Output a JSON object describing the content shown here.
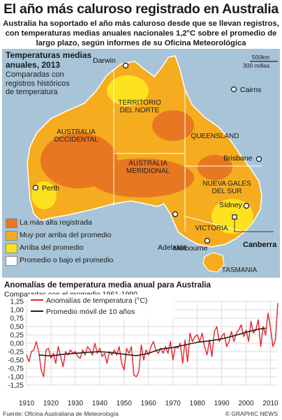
{
  "title": "El año más caluroso registrado en Australia",
  "subtitle": "Australia ha soportado el año más caluroso desde que se llevan registros, con temperaturas medias anuales nacionales 1,2°C sobre el promedio de largo plazo, según informes de su Oficina Meteorológica",
  "map": {
    "heading_line1": "Temperaturas medias",
    "heading_line2": "anuales, 2013",
    "sub_line1": "Comparadas con",
    "sub_line2": "registros históricos",
    "sub_line3": "de temperatura",
    "scale_km": "500km",
    "scale_miles": "300 millas",
    "regions": {
      "wa_1": "AUSTRALIA",
      "wa_2": "OCCIDENTAL",
      "nt_1": "TERRITORIO",
      "nt_2": "DEL NORTE",
      "qld": "QUEENSLAND",
      "sa_1": "AUSTRALIA",
      "sa_2": "MERIDIONAL",
      "nsw_1": "NUEVA GALES",
      "nsw_2": "DEL SUR",
      "vic": "VICTORIA",
      "tas": "TASMANIA"
    },
    "cities": {
      "darwin": "Darwin",
      "cairns": "Cairns",
      "brisbane": "Brisbane",
      "perth": "Perth",
      "adelaide": "Adelaida",
      "sydney": "Sídney",
      "canberra": "Canberra",
      "melbourne": "Melbourne"
    },
    "legend": [
      {
        "label": "La más alta registrada",
        "color": "#e87722"
      },
      {
        "label": "Muy por arriba del promedio",
        "color": "#f5ac1e"
      },
      {
        "label": "Arriba del promedio",
        "color": "#fde21f"
      },
      {
        "label": "Promedio o bajo el promedio",
        "color": "#ffffff"
      }
    ]
  },
  "chart_title": "Anomalías de temperatura media anual para Australia",
  "chart_subtitle": "Comparadas con el promedio 1961-1990",
  "chart_data": {
    "type": "line",
    "title": "Anomalías de temperatura media anual para Australia",
    "subtitle": "Comparadas con el promedio 1961-1990",
    "xlabel": "",
    "ylabel": "",
    "xlim": [
      1910,
      2013
    ],
    "ylim": [
      -1.25,
      1.25
    ],
    "xticks": [
      1910,
      1920,
      1930,
      1940,
      1950,
      1960,
      1970,
      1980,
      1990,
      2000,
      2010
    ],
    "yticks": [
      "1,25",
      "1,00",
      "0,75",
      "0,50",
      "0,25",
      "0,00",
      "-0,25",
      "-0,50",
      "-0,75",
      "-1,00",
      "-1,25"
    ],
    "grid": true,
    "legend_position": "top-left",
    "colors": {
      "anomaly": "#e4232b",
      "moving_average": "#222222"
    },
    "series": [
      {
        "name": "Anomalías de temperatura (°C)",
        "x": [
          1910,
          1911,
          1912,
          1913,
          1914,
          1915,
          1916,
          1917,
          1918,
          1919,
          1920,
          1921,
          1922,
          1923,
          1924,
          1925,
          1926,
          1927,
          1928,
          1929,
          1930,
          1931,
          1932,
          1933,
          1934,
          1935,
          1936,
          1937,
          1938,
          1939,
          1940,
          1941,
          1942,
          1943,
          1944,
          1945,
          1946,
          1947,
          1948,
          1949,
          1950,
          1951,
          1952,
          1953,
          1954,
          1955,
          1956,
          1957,
          1958,
          1959,
          1960,
          1961,
          1962,
          1963,
          1964,
          1965,
          1966,
          1967,
          1968,
          1969,
          1970,
          1971,
          1972,
          1973,
          1974,
          1975,
          1976,
          1977,
          1978,
          1979,
          1980,
          1981,
          1982,
          1983,
          1984,
          1985,
          1986,
          1987,
          1988,
          1989,
          1990,
          1991,
          1992,
          1993,
          1994,
          1995,
          1996,
          1997,
          1998,
          1999,
          2000,
          2001,
          2002,
          2003,
          2004,
          2005,
          2006,
          2007,
          2008,
          2009,
          2010,
          2011,
          2012,
          2013
        ],
        "values": [
          -0.35,
          -0.55,
          -0.25,
          -0.2,
          0.05,
          -0.25,
          -0.8,
          -1.0,
          -0.2,
          -0.15,
          -0.45,
          -0.3,
          -0.6,
          -0.1,
          -0.4,
          -0.7,
          -0.25,
          -0.35,
          -0.2,
          -0.3,
          -0.25,
          -0.4,
          -0.45,
          -0.2,
          -0.35,
          -0.1,
          -0.2,
          -0.35,
          0.0,
          -0.3,
          -0.15,
          -0.4,
          -0.3,
          -0.6,
          -0.25,
          -0.35,
          -0.2,
          -0.35,
          -0.1,
          -0.6,
          -0.8,
          -0.15,
          -0.3,
          -0.1,
          -0.95,
          -1.0,
          -0.85,
          -0.05,
          -0.5,
          -0.2,
          -0.35,
          -0.1,
          0.05,
          -0.2,
          -0.3,
          -0.15,
          -0.3,
          -0.1,
          -0.3,
          0.05,
          -0.5,
          -0.1,
          -0.15,
          0.0,
          -0.6,
          0.1,
          -0.55,
          0.3,
          0.05,
          0.2,
          0.25,
          0.05,
          0.3,
          -0.1,
          -0.35,
          0.1,
          -0.4,
          0.35,
          0.5,
          0.05,
          0.2,
          0.3,
          -0.1,
          0.05,
          0.35,
          0.05,
          0.3,
          0.4,
          0.55,
          0.2,
          0.4,
          0.05,
          0.65,
          0.3,
          0.4,
          0.7,
          -0.1,
          0.5,
          0.25,
          0.9,
          0.45,
          -0.1,
          0.1,
          1.2
        ]
      },
      {
        "name": "Promedio móvil de 10 años",
        "x": [
          1915,
          1920,
          1925,
          1930,
          1935,
          1940,
          1945,
          1950,
          1955,
          1960,
          1965,
          1970,
          1975,
          1980,
          1985,
          1990,
          1995,
          2000,
          2005,
          2008
        ],
        "values": [
          -0.35,
          -0.38,
          -0.33,
          -0.3,
          -0.27,
          -0.25,
          -0.28,
          -0.33,
          -0.37,
          -0.3,
          -0.17,
          -0.13,
          -0.05,
          0.03,
          0.07,
          0.13,
          0.22,
          0.33,
          0.42,
          0.45
        ]
      }
    ]
  },
  "source": "Fuente: Oficina Australiana de Meteorología",
  "credit": "© GRAPHIC NEWS"
}
